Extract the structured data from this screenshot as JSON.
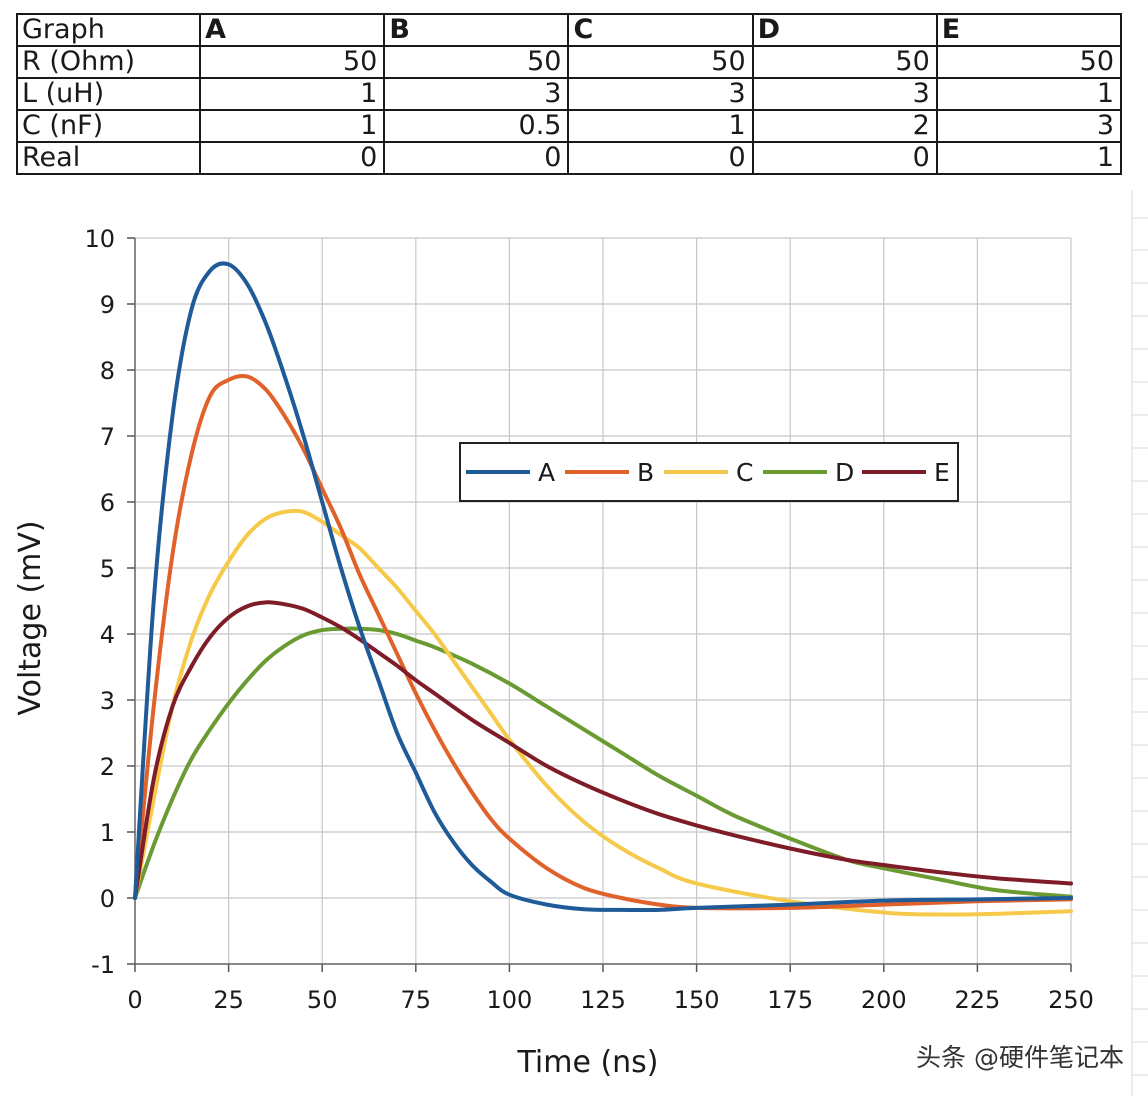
{
  "table": {
    "headers": [
      "Graph",
      "A",
      "B",
      "C",
      "D",
      "E"
    ],
    "rows": [
      {
        "label": "R (Ohm)",
        "values": [
          "50",
          "50",
          "50",
          "50",
          "50"
        ]
      },
      {
        "label": "L (uH)",
        "values": [
          "1",
          "3",
          "3",
          "3",
          "1"
        ]
      },
      {
        "label": "C (nF)",
        "values": [
          "1",
          "0.5",
          "1",
          "2",
          "3"
        ]
      },
      {
        "label": "Real",
        "values": [
          "0",
          "0",
          "0",
          "0",
          "1"
        ]
      }
    ]
  },
  "chart_data": {
    "type": "line",
    "title": "",
    "xlabel": "Time (ns)",
    "ylabel": "Voltage (mV)",
    "xlim": [
      0,
      250
    ],
    "ylim": [
      -1,
      10
    ],
    "xticks": [
      0,
      25,
      50,
      75,
      100,
      125,
      150,
      175,
      200,
      225,
      250
    ],
    "yticks": [
      -1,
      0,
      1,
      2,
      3,
      4,
      5,
      6,
      7,
      8,
      9,
      10
    ],
    "grid": true,
    "legend_position": "center-right",
    "series": [
      {
        "name": "A",
        "color": "#1f5a99",
        "x": [
          0,
          5,
          10,
          15,
          20,
          25,
          30,
          35,
          40,
          45,
          50,
          55,
          60,
          65,
          70,
          75,
          80,
          85,
          90,
          95,
          100,
          110,
          120,
          130,
          140,
          150,
          175,
          200,
          225,
          250
        ],
        "y": [
          0,
          4.5,
          7.3,
          8.9,
          9.5,
          9.6,
          9.3,
          8.7,
          7.9,
          7.0,
          6.0,
          5.0,
          4.1,
          3.3,
          2.5,
          1.9,
          1.3,
          0.85,
          0.5,
          0.25,
          0.05,
          -0.1,
          -0.17,
          -0.18,
          -0.18,
          -0.15,
          -0.1,
          -0.04,
          -0.02,
          0
        ]
      },
      {
        "name": "B",
        "color": "#e0622a",
        "x": [
          0,
          5,
          10,
          15,
          20,
          25,
          30,
          35,
          40,
          45,
          50,
          55,
          60,
          65,
          70,
          75,
          80,
          85,
          90,
          95,
          100,
          110,
          120,
          130,
          140,
          150,
          175,
          200,
          225,
          250
        ],
        "y": [
          0,
          2.9,
          5.2,
          6.7,
          7.6,
          7.85,
          7.9,
          7.7,
          7.3,
          6.8,
          6.2,
          5.6,
          4.9,
          4.3,
          3.7,
          3.1,
          2.55,
          2.05,
          1.6,
          1.2,
          0.9,
          0.45,
          0.15,
          0.0,
          -0.1,
          -0.15,
          -0.15,
          -0.1,
          -0.05,
          -0.02
        ]
      },
      {
        "name": "C",
        "color": "#f6c94a",
        "x": [
          0,
          5,
          10,
          15,
          20,
          25,
          30,
          35,
          40,
          45,
          50,
          55,
          60,
          65,
          70,
          75,
          80,
          85,
          90,
          95,
          100,
          110,
          120,
          130,
          140,
          150,
          175,
          200,
          215,
          230,
          250
        ],
        "y": [
          0,
          1.5,
          2.9,
          3.9,
          4.6,
          5.1,
          5.5,
          5.75,
          5.85,
          5.85,
          5.7,
          5.5,
          5.3,
          5.0,
          4.7,
          4.35,
          4.0,
          3.6,
          3.2,
          2.8,
          2.4,
          1.7,
          1.15,
          0.75,
          0.45,
          0.22,
          -0.05,
          -0.22,
          -0.25,
          -0.24,
          -0.2
        ]
      },
      {
        "name": "D",
        "color": "#6a9a32",
        "x": [
          0,
          5,
          10,
          15,
          20,
          25,
          30,
          35,
          40,
          45,
          50,
          55,
          60,
          65,
          70,
          75,
          80,
          90,
          100,
          110,
          120,
          130,
          140,
          150,
          160,
          175,
          190,
          200,
          215,
          230,
          250
        ],
        "y": [
          0,
          0.8,
          1.5,
          2.1,
          2.55,
          2.95,
          3.3,
          3.6,
          3.82,
          3.98,
          4.06,
          4.08,
          4.08,
          4.06,
          4.0,
          3.9,
          3.8,
          3.55,
          3.25,
          2.9,
          2.55,
          2.2,
          1.85,
          1.55,
          1.25,
          0.9,
          0.58,
          0.45,
          0.28,
          0.12,
          0.02
        ]
      },
      {
        "name": "E",
        "color": "#7e1c28",
        "x": [
          0,
          5,
          10,
          15,
          20,
          25,
          30,
          35,
          40,
          45,
          50,
          55,
          60,
          65,
          70,
          75,
          80,
          90,
          100,
          110,
          120,
          130,
          140,
          150,
          160,
          175,
          190,
          200,
          215,
          230,
          250
        ],
        "y": [
          0,
          1.8,
          2.9,
          3.5,
          3.95,
          4.25,
          4.42,
          4.48,
          4.45,
          4.38,
          4.25,
          4.1,
          3.92,
          3.72,
          3.52,
          3.3,
          3.1,
          2.7,
          2.35,
          2.0,
          1.72,
          1.48,
          1.27,
          1.1,
          0.95,
          0.75,
          0.58,
          0.5,
          0.39,
          0.3,
          0.22
        ]
      }
    ]
  },
  "watermark": "头条 @硬件笔记本"
}
